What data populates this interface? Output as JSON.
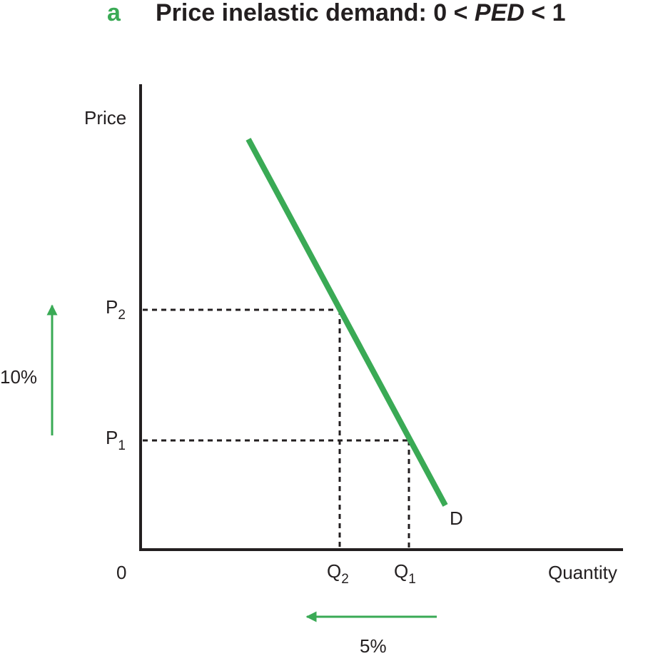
{
  "header": {
    "letter": "a",
    "title_parts": [
      "Price inelastic demand: 0 < ",
      "PED",
      " < 1"
    ]
  },
  "axes": {
    "y_label": "Price",
    "x_label": "Quantity",
    "origin": "0"
  },
  "prices": [
    {
      "label": "P",
      "sub": "2"
    },
    {
      "label": "P",
      "sub": "1"
    }
  ],
  "quantities": [
    {
      "label": "Q",
      "sub": "2"
    },
    {
      "label": "Q",
      "sub": "1"
    }
  ],
  "curve": {
    "label": "D"
  },
  "changes": {
    "price": "10%",
    "quantity": "5%"
  }
}
